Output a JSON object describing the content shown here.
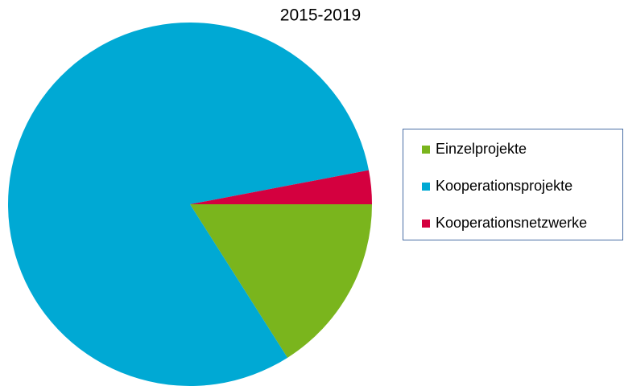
{
  "chart_data": {
    "type": "pie",
    "title": "2015-2019",
    "categories": [
      "Einzelprojekte",
      "Kooperationsprojekte",
      "Kooperationsnetzwerke"
    ],
    "values": [
      16,
      81,
      3
    ],
    "colors": [
      "#7ab51d",
      "#00a9d4",
      "#d4003f"
    ],
    "legend": "right"
  }
}
